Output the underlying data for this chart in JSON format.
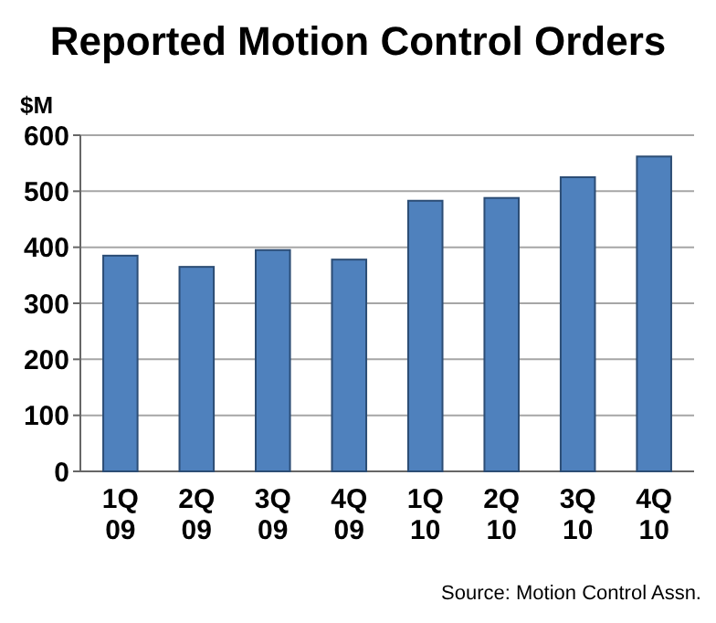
{
  "chart_data": {
    "type": "bar",
    "title": "Reported Motion Control Orders",
    "ylabel": "$M",
    "categories": [
      "1Q 09",
      "2Q 09",
      "3Q 09",
      "4Q 09",
      "1Q 10",
      "2Q 10",
      "3Q 10",
      "4Q 10"
    ],
    "values": [
      385,
      365,
      395,
      378,
      483,
      488,
      525,
      562
    ],
    "color": "#4f81bd",
    "ylim": [
      0,
      600
    ],
    "yticks": [
      0,
      100,
      200,
      300,
      400,
      500,
      600
    ],
    "grid": "y",
    "annotations": [
      "Source: Motion Control Assn."
    ]
  }
}
